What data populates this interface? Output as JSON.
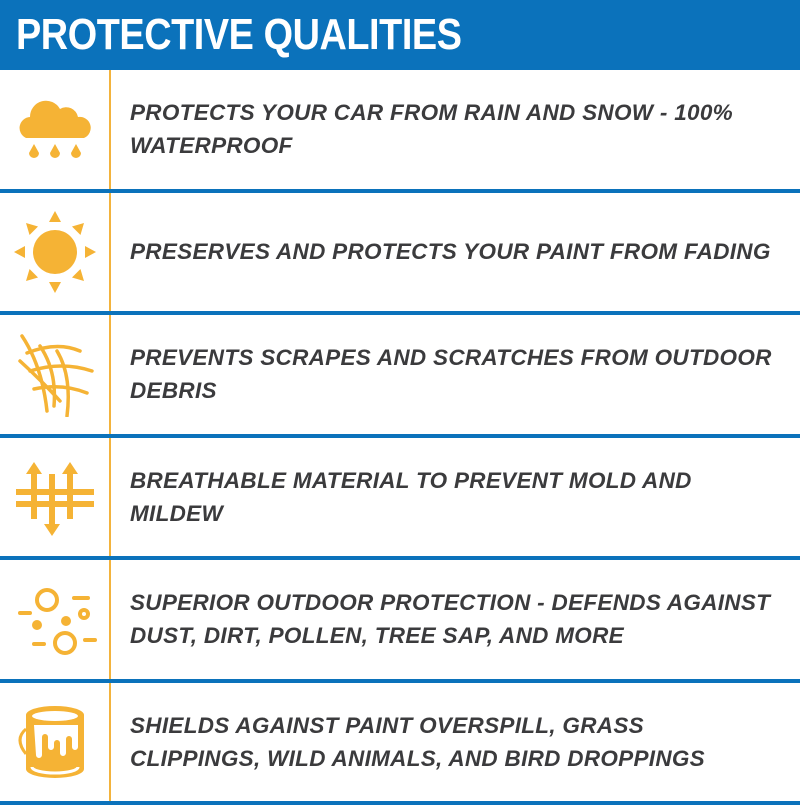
{
  "header": {
    "title": "PROTECTIVE QUALITIES"
  },
  "accent_color": "#0b72bb",
  "icon_color": "#f5b335",
  "rows": [
    {
      "icon": "rain-cloud-icon",
      "text": "PROTECTS YOUR CAR FROM RAIN AND SNOW - 100% WATERPROOF"
    },
    {
      "icon": "sun-icon",
      "text": "PRESERVES AND PROTECTS YOUR PAINT FROM FADING"
    },
    {
      "icon": "scratch-mesh-icon",
      "text": "PREVENTS SCRAPES AND SCRATCHES FROM OUTDOOR DEBRIS"
    },
    {
      "icon": "breathable-arrows-icon",
      "text": "BREATHABLE MATERIAL TO PREVENT MOLD AND MILDEW"
    },
    {
      "icon": "dust-particles-icon",
      "text": "SUPERIOR OUTDOOR PROTECTION - DEFENDS AGAINST DUST, DIRT, POLLEN, TREE SAP, AND MORE"
    },
    {
      "icon": "paint-bucket-icon",
      "text": "SHIELDS AGAINST PAINT OVERSPILL, GRASS CLIPPINGS, WILD ANIMALS, AND BIRD DROPPINGS"
    }
  ]
}
